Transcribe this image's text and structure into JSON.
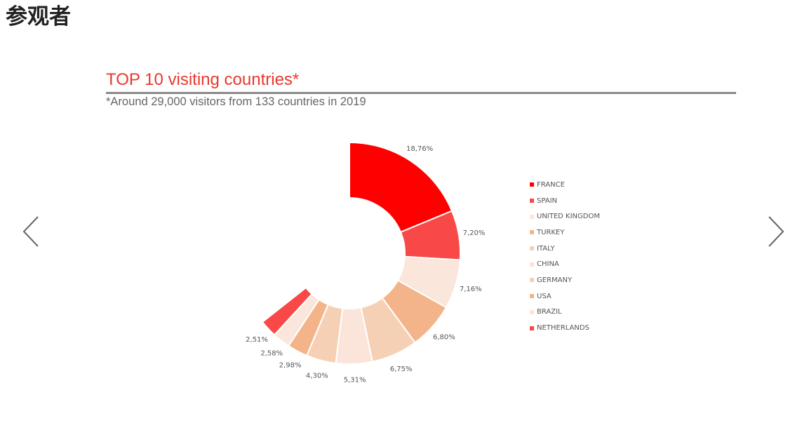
{
  "page": {
    "heading": "参观者"
  },
  "carousel": {
    "prev_icon": "chevron-left-icon",
    "next_icon": "chevron-right-icon"
  },
  "chart_data": {
    "type": "pie",
    "variant": "donut",
    "title": "TOP 10 visiting countries*",
    "subtitle": "*Around 29,000 visitors from 133 countries in 2019",
    "legend_position": "right",
    "categories": [
      "FRANCE",
      "SPAIN",
      "UNITED KINGDOM",
      "TURKEY",
      "ITALY",
      "CHINA",
      "GERMANY",
      "USA",
      "BRAZIL",
      "NETHERLANDS"
    ],
    "values": [
      18.76,
      7.2,
      7.16,
      6.8,
      6.75,
      5.31,
      4.3,
      2.98,
      2.58,
      2.51
    ],
    "labels": [
      "18,76%",
      "7,20%",
      "7,16%",
      "6,80%",
      "6,75%",
      "5,31%",
      "4,30%",
      "2,98%",
      "2,58%",
      "2,51%"
    ],
    "colors": [
      "#ff0000",
      "#f94848",
      "#fae6da",
      "#f4b48a",
      "#f6d0b4",
      "#fbe5da",
      "#f6d0b4",
      "#f4b48a",
      "#fae6da",
      "#f94848"
    ]
  }
}
